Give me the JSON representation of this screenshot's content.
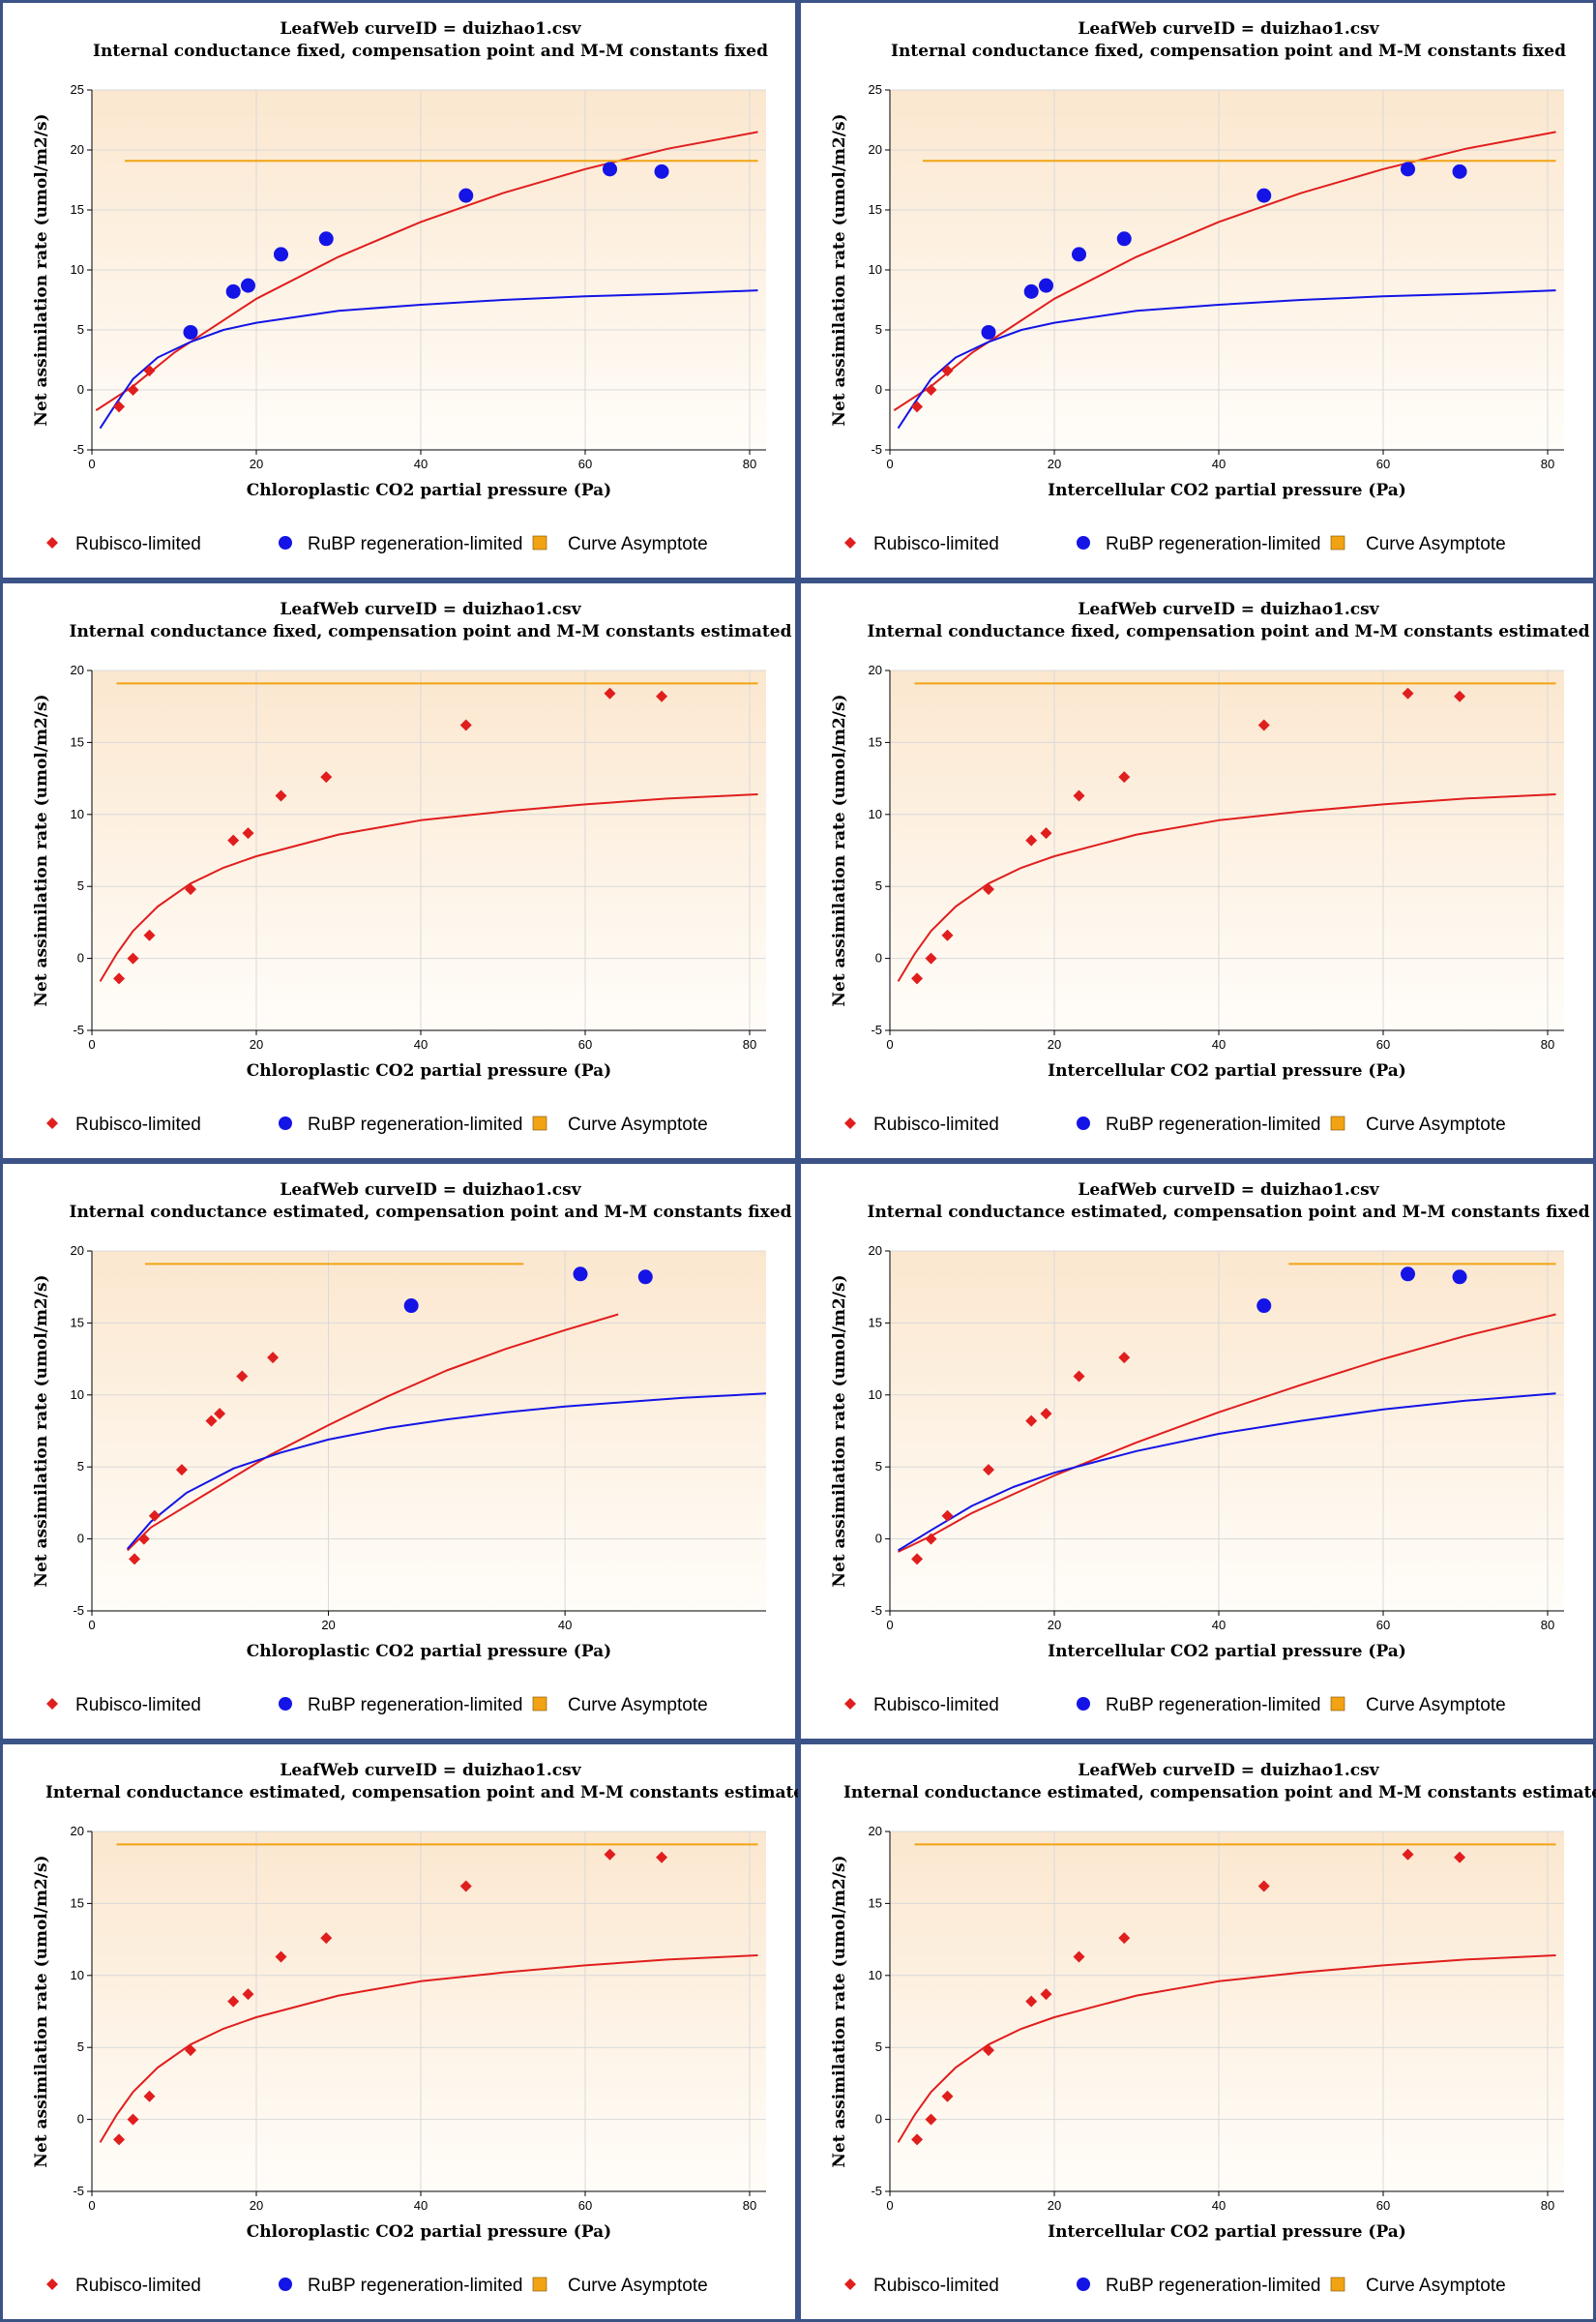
{
  "colors": {
    "panel_border": "#3b5387",
    "plot_bg_top": "#fbe7cf",
    "plot_bg_bottom": "#fffdf9",
    "grid": "#d9d9d9",
    "rubisco": "#e01e1e",
    "rubp": "#1414e6",
    "asymptote": "#f2a313"
  },
  "legend": {
    "rubisco": "Rubisco-limited",
    "rubp": "RuBP regeneration-limited",
    "asymptote": "Curve Asymptote"
  },
  "chart_data": [
    {
      "type": "scatter",
      "title": "LeafWeb curveID = duizhao1.csv",
      "subtitle": "Internal conductance fixed, compensation point and M-M constants fixed",
      "xlabel": "Chloroplastic CO2 partial pressure (Pa)",
      "ylabel": "Net assimilation rate (umol/m2/s)",
      "xlim": [
        0,
        82
      ],
      "ylim": [
        -5,
        25
      ],
      "xticks": [
        0,
        20,
        40,
        60,
        80
      ],
      "yticks": [
        -5,
        0,
        5,
        10,
        15,
        20,
        25
      ],
      "grid": true,
      "legend_position": "bottom",
      "series": [
        {
          "name": "Rubisco-limited",
          "kind": "diamond",
          "x": [
            3.3,
            5.0,
            7.0
          ],
          "y": [
            -1.4,
            0.0,
            1.6
          ]
        },
        {
          "name": "RuBP regeneration-limited",
          "kind": "circle",
          "x": [
            12.0,
            17.2,
            19.0,
            23.0,
            28.5,
            45.5,
            63.0,
            69.3
          ],
          "y": [
            4.8,
            8.2,
            8.7,
            11.3,
            12.6,
            16.2,
            18.4,
            18.2
          ]
        },
        {
          "name": "Rubisco-limited",
          "kind": "curve",
          "x": [
            0.5,
            5,
            10,
            20,
            30,
            40,
            50,
            60,
            70,
            81
          ],
          "y": [
            -1.7,
            0.3,
            3.1,
            7.6,
            11.1,
            14.0,
            16.4,
            18.4,
            20.1,
            21.5
          ]
        },
        {
          "name": "RuBP regeneration-limited",
          "kind": "curve",
          "x": [
            1,
            3,
            5,
            8,
            12,
            16,
            20,
            30,
            40,
            50,
            60,
            70,
            81
          ],
          "y": [
            -3.2,
            -1.1,
            0.9,
            2.7,
            4.0,
            5.0,
            5.6,
            6.6,
            7.1,
            7.5,
            7.8,
            8.0,
            8.3
          ]
        },
        {
          "name": "Curve Asymptote",
          "kind": "hline",
          "x": [
            4,
            81
          ],
          "y": [
            19.1,
            19.1
          ]
        }
      ]
    },
    {
      "type": "scatter",
      "title": "LeafWeb curveID = duizhao1.csv",
      "subtitle": "Internal conductance fixed, compensation point and M-M constants fixed",
      "xlabel": "Intercellular CO2 partial pressure (Pa)",
      "ylabel": "Net assimilation rate (umol/m2/s)",
      "xlim": [
        0,
        82
      ],
      "ylim": [
        -5,
        25
      ],
      "xticks": [
        0,
        20,
        40,
        60,
        80
      ],
      "yticks": [
        -5,
        0,
        5,
        10,
        15,
        20,
        25
      ],
      "grid": true,
      "legend_position": "bottom",
      "series": [
        {
          "name": "Rubisco-limited",
          "kind": "diamond",
          "x": [
            3.3,
            5.0,
            7.0
          ],
          "y": [
            -1.4,
            0.0,
            1.6
          ]
        },
        {
          "name": "RuBP regeneration-limited",
          "kind": "circle",
          "x": [
            12.0,
            17.2,
            19.0,
            23.0,
            28.5,
            45.5,
            63.0,
            69.3
          ],
          "y": [
            4.8,
            8.2,
            8.7,
            11.3,
            12.6,
            16.2,
            18.4,
            18.2
          ]
        },
        {
          "name": "Rubisco-limited",
          "kind": "curve",
          "x": [
            0.5,
            5,
            10,
            20,
            30,
            40,
            50,
            60,
            70,
            81
          ],
          "y": [
            -1.7,
            0.3,
            3.1,
            7.6,
            11.1,
            14.0,
            16.4,
            18.4,
            20.1,
            21.5
          ]
        },
        {
          "name": "RuBP regeneration-limited",
          "kind": "curve",
          "x": [
            1,
            3,
            5,
            8,
            12,
            16,
            20,
            30,
            40,
            50,
            60,
            70,
            81
          ],
          "y": [
            -3.2,
            -1.1,
            0.9,
            2.7,
            4.0,
            5.0,
            5.6,
            6.6,
            7.1,
            7.5,
            7.8,
            8.0,
            8.3
          ]
        },
        {
          "name": "Curve Asymptote",
          "kind": "hline",
          "x": [
            4,
            81
          ],
          "y": [
            19.1,
            19.1
          ]
        }
      ]
    },
    {
      "type": "scatter",
      "title": "LeafWeb curveID = duizhao1.csv",
      "subtitle": "Internal conductance fixed, compensation point and M-M constants estimated",
      "xlabel": "Chloroplastic CO2 partial pressure (Pa)",
      "ylabel": "Net assimilation rate (umol/m2/s)",
      "xlim": [
        0,
        82
      ],
      "ylim": [
        -5,
        20
      ],
      "xticks": [
        0,
        20,
        40,
        60,
        80
      ],
      "yticks": [
        -5,
        0,
        5,
        10,
        15,
        20
      ],
      "grid": true,
      "legend_position": "bottom",
      "series": [
        {
          "name": "Rubisco-limited",
          "kind": "diamond",
          "x": [
            3.3,
            5.0,
            7.0,
            12.0,
            17.2,
            19.0,
            23.0,
            28.5,
            45.5,
            63.0,
            69.3
          ],
          "y": [
            -1.4,
            0.0,
            1.6,
            4.8,
            8.2,
            8.7,
            11.3,
            12.6,
            16.2,
            18.4,
            18.2
          ]
        },
        {
          "name": "Rubisco-limited",
          "kind": "curve",
          "x": [
            1,
            3,
            5,
            8,
            12,
            16,
            20,
            30,
            40,
            50,
            60,
            70,
            81
          ],
          "y": [
            -1.6,
            0.3,
            1.9,
            3.6,
            5.2,
            6.3,
            7.1,
            8.6,
            9.6,
            10.2,
            10.7,
            11.1,
            11.4
          ]
        },
        {
          "name": "Curve Asymptote",
          "kind": "hline",
          "x": [
            3,
            81
          ],
          "y": [
            19.1,
            19.1
          ]
        }
      ]
    },
    {
      "type": "scatter",
      "title": "LeafWeb curveID = duizhao1.csv",
      "subtitle": "Internal conductance fixed, compensation point and M-M constants estimated",
      "xlabel": "Intercellular CO2 partial pressure (Pa)",
      "ylabel": "Net assimilation rate (umol/m2/s)",
      "xlim": [
        0,
        82
      ],
      "ylim": [
        -5,
        20
      ],
      "xticks": [
        0,
        20,
        40,
        60,
        80
      ],
      "yticks": [
        -5,
        0,
        5,
        10,
        15,
        20
      ],
      "grid": true,
      "legend_position": "bottom",
      "series": [
        {
          "name": "Rubisco-limited",
          "kind": "diamond",
          "x": [
            3.3,
            5.0,
            7.0,
            12.0,
            17.2,
            19.0,
            23.0,
            28.5,
            45.5,
            63.0,
            69.3
          ],
          "y": [
            -1.4,
            0.0,
            1.6,
            4.8,
            8.2,
            8.7,
            11.3,
            12.6,
            16.2,
            18.4,
            18.2
          ]
        },
        {
          "name": "Rubisco-limited",
          "kind": "curve",
          "x": [
            1,
            3,
            5,
            8,
            12,
            16,
            20,
            30,
            40,
            50,
            60,
            70,
            81
          ],
          "y": [
            -1.6,
            0.3,
            1.9,
            3.6,
            5.2,
            6.3,
            7.1,
            8.6,
            9.6,
            10.2,
            10.7,
            11.1,
            11.4
          ]
        },
        {
          "name": "Curve Asymptote",
          "kind": "hline",
          "x": [
            3,
            81
          ],
          "y": [
            19.1,
            19.1
          ]
        }
      ]
    },
    {
      "type": "scatter",
      "title": "LeafWeb curveID = duizhao1.csv",
      "subtitle": "Internal conductance estimated, compensation point and M-M constants fixed",
      "xlabel": "Chloroplastic CO2 partial pressure (Pa)",
      "ylabel": "Net assimilation rate (umol/m2/s)",
      "xlim": [
        0,
        57
      ],
      "ylim": [
        -5,
        20
      ],
      "xticks": [
        0,
        20,
        40
      ],
      "yticks": [
        -5,
        0,
        5,
        10,
        15,
        20
      ],
      "grid": true,
      "legend_position": "bottom",
      "series": [
        {
          "name": "Rubisco-limited",
          "kind": "diamond",
          "x": [
            3.6,
            4.4,
            5.3,
            7.6,
            10.1,
            10.8,
            12.7,
            15.3
          ],
          "y": [
            -1.4,
            0.0,
            1.6,
            4.8,
            8.2,
            8.7,
            11.3,
            12.6
          ]
        },
        {
          "name": "RuBP regeneration-limited",
          "kind": "circle",
          "x": [
            27.0,
            41.3,
            46.8
          ],
          "y": [
            16.2,
            18.4,
            18.2
          ]
        },
        {
          "name": "Rubisco-limited",
          "kind": "curve",
          "x": [
            3,
            5,
            10,
            15,
            20,
            25,
            30,
            35,
            40,
            44.5
          ],
          "y": [
            -0.8,
            0.8,
            3.3,
            5.8,
            7.9,
            9.9,
            11.7,
            13.2,
            14.5,
            15.6
          ]
        },
        {
          "name": "RuBP regeneration-limited",
          "kind": "curve",
          "x": [
            3,
            5,
            8,
            12,
            16,
            20,
            25,
            30,
            35,
            40,
            45,
            50,
            57
          ],
          "y": [
            -0.7,
            1.2,
            3.2,
            4.9,
            6.0,
            6.9,
            7.7,
            8.3,
            8.8,
            9.2,
            9.5,
            9.8,
            10.1
          ]
        },
        {
          "name": "Curve Asymptote",
          "kind": "hline",
          "x": [
            4.5,
            36.5
          ],
          "y": [
            19.1,
            19.1
          ]
        }
      ]
    },
    {
      "type": "scatter",
      "title": "LeafWeb curveID = duizhao1.csv",
      "subtitle": "Internal conductance estimated, compensation point and M-M constants fixed",
      "xlabel": "Intercellular CO2 partial pressure (Pa)",
      "ylabel": "Net assimilation rate (umol/m2/s)",
      "xlim": [
        0,
        82
      ],
      "ylim": [
        -5,
        20
      ],
      "xticks": [
        0,
        20,
        40,
        60,
        80
      ],
      "yticks": [
        -5,
        0,
        5,
        10,
        15,
        20
      ],
      "grid": true,
      "legend_position": "bottom",
      "series": [
        {
          "name": "Rubisco-limited",
          "kind": "diamond",
          "x": [
            3.3,
            5.0,
            7.0,
            12.0,
            17.2,
            19.0,
            23.0,
            28.5
          ],
          "y": [
            -1.4,
            0.0,
            1.6,
            4.8,
            8.2,
            8.7,
            11.3,
            12.6
          ]
        },
        {
          "name": "RuBP regeneration-limited",
          "kind": "circle",
          "x": [
            45.5,
            63.0,
            69.3
          ],
          "y": [
            16.2,
            18.4,
            18.2
          ]
        },
        {
          "name": "Rubisco-limited",
          "kind": "curve",
          "x": [
            1,
            5,
            10,
            20,
            30,
            40,
            50,
            60,
            70,
            81
          ],
          "y": [
            -0.9,
            0.2,
            1.8,
            4.4,
            6.7,
            8.8,
            10.7,
            12.5,
            14.1,
            15.6
          ]
        },
        {
          "name": "RuBP regeneration-limited",
          "kind": "curve",
          "x": [
            1,
            5,
            10,
            15,
            20,
            30,
            40,
            50,
            60,
            70,
            81
          ],
          "y": [
            -0.8,
            0.6,
            2.3,
            3.6,
            4.6,
            6.1,
            7.3,
            8.2,
            9.0,
            9.6,
            10.1
          ]
        },
        {
          "name": "Curve Asymptote",
          "kind": "hline",
          "x": [
            48.5,
            81
          ],
          "y": [
            19.1,
            19.1
          ]
        }
      ]
    },
    {
      "type": "scatter",
      "title": "LeafWeb curveID = duizhao1.csv",
      "subtitle": "Internal conductance estimated, compensation point and M-M constants estimated",
      "xlabel": "Chloroplastic CO2 partial pressure (Pa)",
      "ylabel": "Net assimilation rate (umol/m2/s)",
      "xlim": [
        0,
        82
      ],
      "ylim": [
        -5,
        20
      ],
      "xticks": [
        0,
        20,
        40,
        60,
        80
      ],
      "yticks": [
        -5,
        0,
        5,
        10,
        15,
        20
      ],
      "grid": true,
      "legend_position": "bottom",
      "series": [
        {
          "name": "Rubisco-limited",
          "kind": "diamond",
          "x": [
            3.3,
            5.0,
            7.0,
            12.0,
            17.2,
            19.0,
            23.0,
            28.5,
            45.5,
            63.0,
            69.3
          ],
          "y": [
            -1.4,
            0.0,
            1.6,
            4.8,
            8.2,
            8.7,
            11.3,
            12.6,
            16.2,
            18.4,
            18.2
          ]
        },
        {
          "name": "Rubisco-limited",
          "kind": "curve",
          "x": [
            1,
            3,
            5,
            8,
            12,
            16,
            20,
            30,
            40,
            50,
            60,
            70,
            81
          ],
          "y": [
            -1.6,
            0.3,
            1.9,
            3.6,
            5.2,
            6.3,
            7.1,
            8.6,
            9.6,
            10.2,
            10.7,
            11.1,
            11.4
          ]
        },
        {
          "name": "Curve Asymptote",
          "kind": "hline",
          "x": [
            3,
            81
          ],
          "y": [
            19.1,
            19.1
          ]
        }
      ]
    },
    {
      "type": "scatter",
      "title": "LeafWeb curveID = duizhao1.csv",
      "subtitle": "Internal conductance estimated, compensation point and M-M constants estimated",
      "xlabel": "Intercellular CO2 partial pressure (Pa)",
      "ylabel": "Net assimilation rate (umol/m2/s)",
      "xlim": [
        0,
        82
      ],
      "ylim": [
        -5,
        20
      ],
      "xticks": [
        0,
        20,
        40,
        60,
        80
      ],
      "yticks": [
        -5,
        0,
        5,
        10,
        15,
        20
      ],
      "grid": true,
      "legend_position": "bottom",
      "series": [
        {
          "name": "Rubisco-limited",
          "kind": "diamond",
          "x": [
            3.3,
            5.0,
            7.0,
            12.0,
            17.2,
            19.0,
            23.0,
            28.5,
            45.5,
            63.0,
            69.3
          ],
          "y": [
            -1.4,
            0.0,
            1.6,
            4.8,
            8.2,
            8.7,
            11.3,
            12.6,
            16.2,
            18.4,
            18.2
          ]
        },
        {
          "name": "Rubisco-limited",
          "kind": "curve",
          "x": [
            1,
            3,
            5,
            8,
            12,
            16,
            20,
            30,
            40,
            50,
            60,
            70,
            81
          ],
          "y": [
            -1.6,
            0.3,
            1.9,
            3.6,
            5.2,
            6.3,
            7.1,
            8.6,
            9.6,
            10.2,
            10.7,
            11.1,
            11.4
          ]
        },
        {
          "name": "Curve Asymptote",
          "kind": "hline",
          "x": [
            3,
            81
          ],
          "y": [
            19.1,
            19.1
          ]
        }
      ]
    }
  ]
}
